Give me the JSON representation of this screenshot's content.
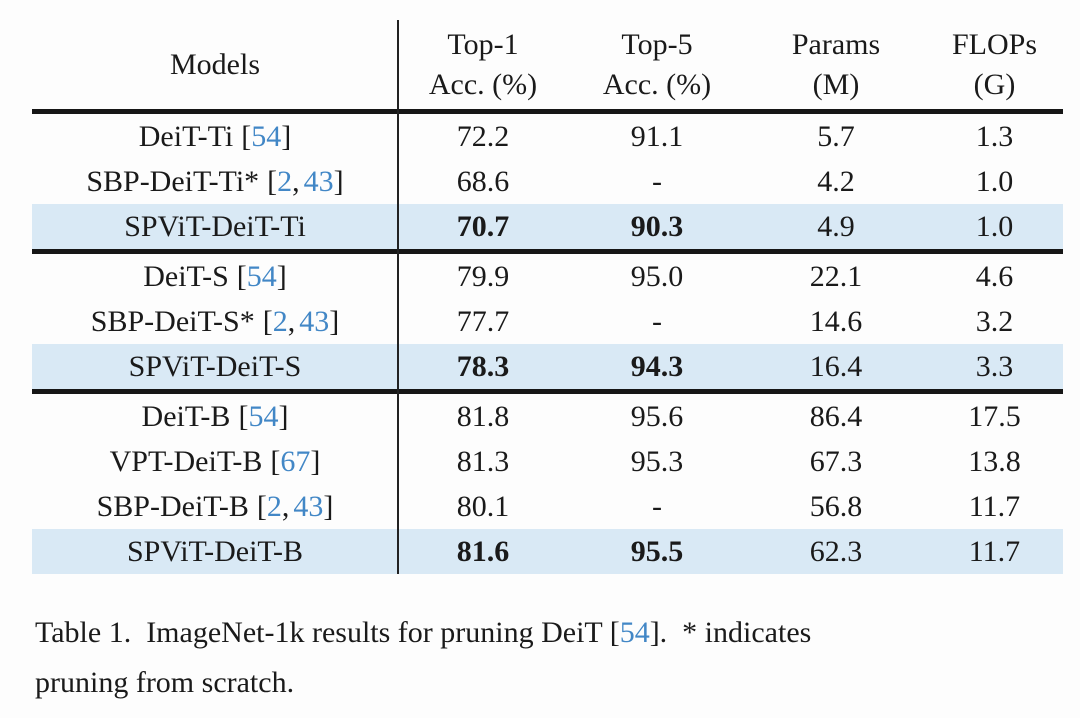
{
  "colors": {
    "citation_blue": "#4287c6",
    "highlight_row": "#d9e9f5",
    "rule_black": "#161616",
    "text": "#1a1a1a"
  },
  "table": {
    "header": {
      "models_label": "Models",
      "columns": [
        {
          "line1": "Top-1",
          "line2": "Acc. (%)"
        },
        {
          "line1": "Top-5",
          "line2": "Acc. (%)"
        },
        {
          "line1": "Params",
          "line2": "(M)"
        },
        {
          "line1": "FLOPs",
          "line2": "(G)"
        }
      ]
    },
    "groups": [
      {
        "rows": [
          {
            "model": "DeiT-Ti",
            "cites": [
              "54"
            ],
            "top1": "72.2",
            "top5": "91.1",
            "params": "5.7",
            "flops": "1.3",
            "highlight": false,
            "bold_acc": false
          },
          {
            "model": "SBP-DeiT-Ti*",
            "cites": [
              "2",
              "43"
            ],
            "top1": "68.6",
            "top5": "-",
            "params": "4.2",
            "flops": "1.0",
            "highlight": false,
            "bold_acc": false
          },
          {
            "model": "SPViT-DeiT-Ti",
            "cites": [],
            "top1": "70.7",
            "top5": "90.3",
            "params": "4.9",
            "flops": "1.0",
            "highlight": true,
            "bold_acc": true
          }
        ]
      },
      {
        "rows": [
          {
            "model": "DeiT-S",
            "cites": [
              "54"
            ],
            "top1": "79.9",
            "top5": "95.0",
            "params": "22.1",
            "flops": "4.6",
            "highlight": false,
            "bold_acc": false
          },
          {
            "model": "SBP-DeiT-S*",
            "cites": [
              "2",
              "43"
            ],
            "top1": "77.7",
            "top5": "-",
            "params": "14.6",
            "flops": "3.2",
            "highlight": false,
            "bold_acc": false
          },
          {
            "model": "SPViT-DeiT-S",
            "cites": [],
            "top1": "78.3",
            "top5": "94.3",
            "params": "16.4",
            "flops": "3.3",
            "highlight": true,
            "bold_acc": true
          }
        ]
      },
      {
        "rows": [
          {
            "model": "DeiT-B",
            "cites": [
              "54"
            ],
            "top1": "81.8",
            "top5": "95.6",
            "params": "86.4",
            "flops": "17.5",
            "highlight": false,
            "bold_acc": false
          },
          {
            "model": "VPT-DeiT-B",
            "cites": [
              "67"
            ],
            "top1": "81.3",
            "top5": "95.3",
            "params": "67.3",
            "flops": "13.8",
            "highlight": false,
            "bold_acc": false
          },
          {
            "model": "SBP-DeiT-B",
            "cites": [
              "2",
              "43"
            ],
            "top1": "80.1",
            "top5": "-",
            "params": "56.8",
            "flops": "11.7",
            "highlight": false,
            "bold_acc": false
          },
          {
            "model": "SPViT-DeiT-B",
            "cites": [],
            "top1": "81.6",
            "top5": "95.5",
            "params": "62.3",
            "flops": "11.7",
            "highlight": true,
            "bold_acc": true
          }
        ]
      }
    ]
  },
  "caption": {
    "before_cite": "Table 1.  ImageNet-1k results for pruning DeiT [",
    "cite": "54",
    "after_cite": "].  * indicates\npruning from scratch."
  }
}
